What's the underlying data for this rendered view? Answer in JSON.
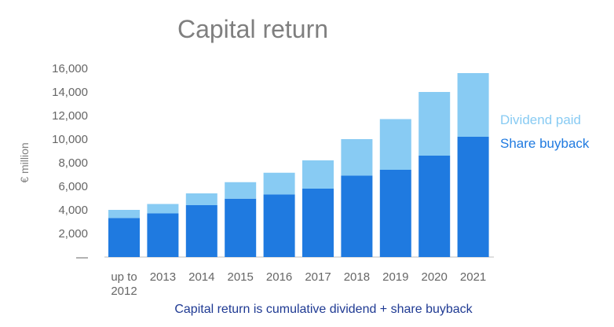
{
  "chart_data": {
    "type": "bar",
    "stacked": true,
    "title": "Capital return",
    "ylabel": "€ million",
    "xlabel": "",
    "categories": [
      [
        "up to",
        "2012"
      ],
      "2013",
      "2014",
      "2015",
      "2016",
      "2017",
      "2018",
      "2019",
      "2020",
      "2021"
    ],
    "yticks": [
      "—",
      "2,000",
      "4,000",
      "6,000",
      "8,000",
      "10,000",
      "12,000",
      "14,000",
      "16,000"
    ],
    "ylim": [
      0,
      16000
    ],
    "grid": false,
    "legend_position": "right",
    "series": [
      {
        "name": "Share buyback",
        "color": "#1f7ae0",
        "values": [
          3300,
          3700,
          4400,
          4950,
          5300,
          5800,
          6900,
          7400,
          8600,
          10200
        ]
      },
      {
        "name": "Dividend paid",
        "color": "#88cbf3",
        "values": [
          700,
          800,
          1000,
          1400,
          1850,
          2400,
          3100,
          4300,
          5400,
          5400
        ]
      }
    ],
    "footnote": "Capital return is cumulative dividend + share buyback",
    "footnote_color": "#1f3a93"
  }
}
